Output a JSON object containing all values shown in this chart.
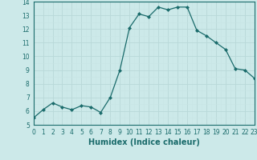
{
  "x": [
    0,
    1,
    2,
    3,
    4,
    5,
    6,
    7,
    8,
    9,
    10,
    11,
    12,
    13,
    14,
    15,
    16,
    17,
    18,
    19,
    20,
    21,
    22,
    23
  ],
  "y": [
    5.5,
    6.1,
    6.6,
    6.3,
    6.1,
    6.4,
    6.3,
    5.9,
    7.0,
    9.0,
    12.1,
    13.1,
    12.9,
    13.6,
    13.4,
    13.6,
    13.6,
    11.9,
    11.5,
    11.0,
    10.5,
    9.1,
    9.0,
    8.4
  ],
  "line_color": "#1a6b6b",
  "marker": "D",
  "marker_size": 2.0,
  "bg_color": "#cce9e9",
  "grid_major_color": "#b8d8d8",
  "grid_minor_color": "#c8e4e4",
  "xlabel": "Humidex (Indice chaleur)",
  "xlim": [
    0,
    23
  ],
  "ylim": [
    5,
    14
  ],
  "yticks": [
    5,
    6,
    7,
    8,
    9,
    10,
    11,
    12,
    13,
    14
  ],
  "xticks": [
    0,
    1,
    2,
    3,
    4,
    5,
    6,
    7,
    8,
    9,
    10,
    11,
    12,
    13,
    14,
    15,
    16,
    17,
    18,
    19,
    20,
    21,
    22,
    23
  ],
  "tick_fontsize": 5.5,
  "xlabel_fontsize": 7.0,
  "axis_color": "#1a6b6b",
  "linewidth": 0.9
}
